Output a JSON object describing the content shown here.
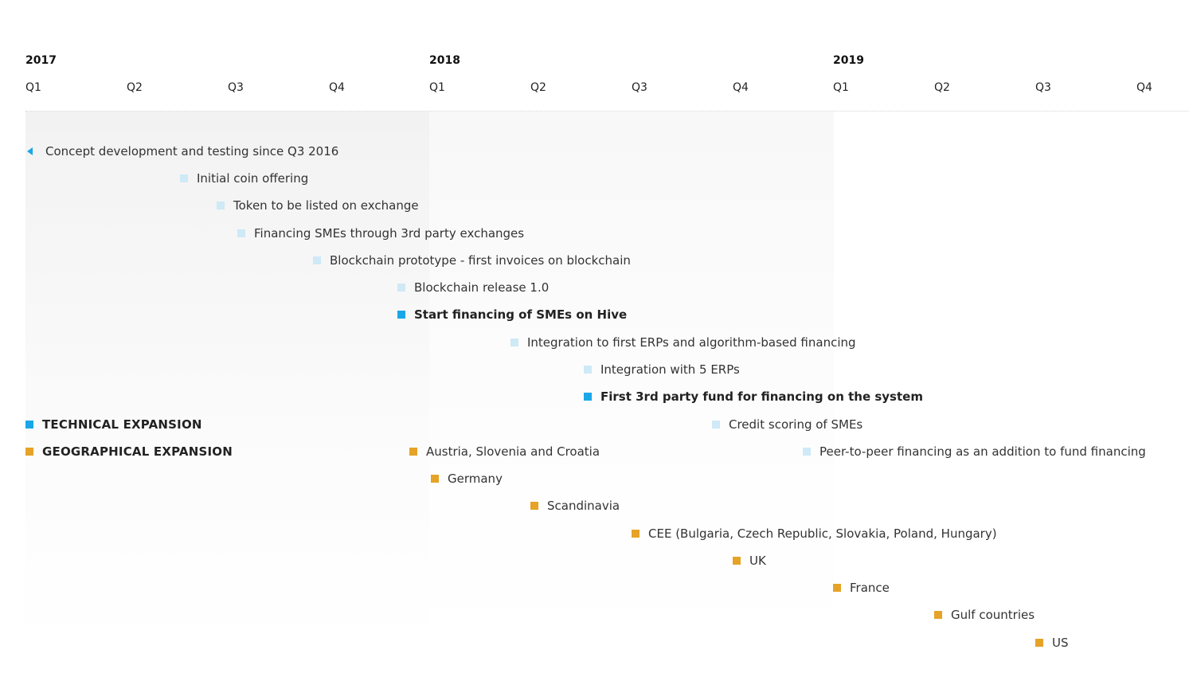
{
  "timeline": {
    "years": [
      "2017",
      "2018",
      "2019"
    ],
    "quarters": [
      "Q1",
      "Q2",
      "Q3",
      "Q4",
      "Q1",
      "Q2",
      "Q3",
      "Q4",
      "Q1",
      "Q2",
      "Q3",
      "Q4"
    ]
  },
  "technical_items": [
    {
      "label": "Concept development and testing since Q3 2016",
      "marker": "triangle"
    },
    {
      "label": "Initial coin offering",
      "marker": "light"
    },
    {
      "label": "Token to be listed on exchange",
      "marker": "light"
    },
    {
      "label": "Financing SMEs through 3rd party exchanges",
      "marker": "light"
    },
    {
      "label": "Blockchain prototype - first invoices on blockchain",
      "marker": "light"
    },
    {
      "label": "Blockchain release 1.0",
      "marker": "light"
    },
    {
      "label": "Start financing of SMEs on Hive",
      "marker": "bright",
      "bold": true
    },
    {
      "label": "Integration to first ERPs and algorithm-based financing",
      "marker": "light"
    },
    {
      "label": "Integration with 5 ERPs",
      "marker": "light"
    },
    {
      "label": "First 3rd party fund for financing on the system",
      "marker": "bright",
      "bold": true
    },
    {
      "label": "Credit scoring of SMEs",
      "marker": "light"
    },
    {
      "label": "Peer-to-peer financing as an addition to fund financing",
      "marker": "light"
    }
  ],
  "geographical_items": [
    {
      "label": "Austria, Slovenia and Croatia"
    },
    {
      "label": "Germany"
    },
    {
      "label": "Scandinavia"
    },
    {
      "label": "CEE (Bulgaria, Czech Republic, Slovakia, Poland, Hungary)"
    },
    {
      "label": "UK"
    },
    {
      "label": "France"
    },
    {
      "label": "Gulf countries"
    },
    {
      "label": "US"
    }
  ],
  "legend": {
    "technical": "TECHNICAL EXPANSION",
    "geographical": "GEOGRAPHICAL EXPANSION"
  },
  "colors": {
    "technical_light": "#cfe9f7",
    "technical_highlight": "#1aa7e8",
    "geographical": "#e6a327"
  }
}
